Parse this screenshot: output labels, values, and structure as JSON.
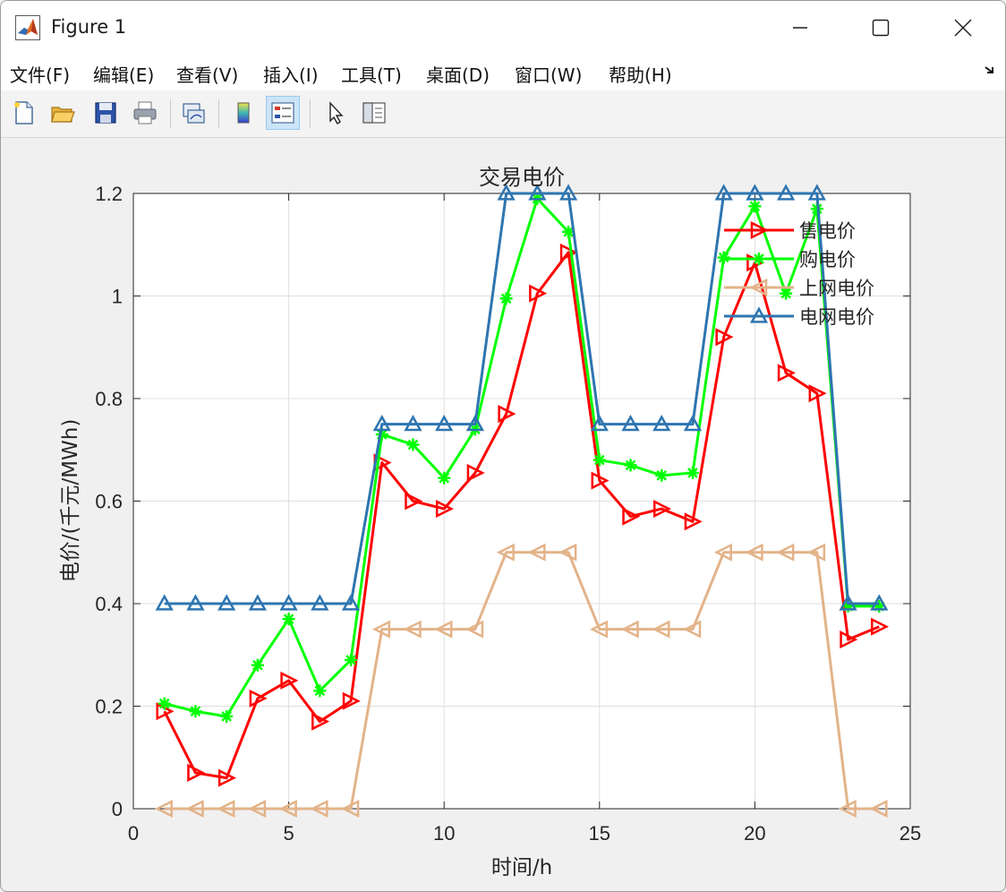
{
  "window": {
    "title": "Figure 1"
  },
  "menu": [
    "文件(F)",
    "编辑(E)",
    "查看(V)",
    "插入(I)",
    "工具(T)",
    "桌面(D)",
    "窗口(W)",
    "帮助(H)"
  ],
  "toolbar": {
    "tools": [
      {
        "name": "new-figure-icon",
        "active": false
      },
      {
        "name": "open-file-icon",
        "active": false
      },
      {
        "name": "save-icon",
        "active": false
      },
      {
        "name": "print-icon",
        "active": false
      },
      {
        "name": "link-plot-icon",
        "active": false
      },
      {
        "name": "colorbar-icon",
        "active": false
      },
      {
        "name": "legend-icon",
        "active": true
      },
      {
        "name": "pointer-icon",
        "active": false
      },
      {
        "name": "property-editor-icon",
        "active": false
      }
    ]
  },
  "colors": {
    "sell": "#ff0000",
    "buy": "#00ff00",
    "feedin": "#e3b389",
    "grid": "#2e75b0"
  },
  "chart_data": {
    "type": "line",
    "title": "交易电价",
    "xlabel": "时间/h",
    "ylabel": "电价/(千元/MWh)",
    "xlim": [
      0,
      25
    ],
    "ylim": [
      0,
      1.2
    ],
    "xticks": [
      0,
      5,
      10,
      15,
      20,
      25
    ],
    "yticks": [
      0,
      0.2,
      0.4,
      0.6,
      0.8,
      1,
      1.2
    ],
    "xtick_labels": [
      "0",
      "5",
      "10",
      "15",
      "20",
      "25"
    ],
    "ytick_labels": [
      "0",
      "0.2",
      "0.4",
      "0.6",
      "0.8",
      "1",
      "1.2"
    ],
    "grid": true,
    "legend_position": "top-right",
    "x": [
      1,
      2,
      3,
      4,
      5,
      6,
      7,
      8,
      9,
      10,
      11,
      12,
      13,
      14,
      15,
      16,
      17,
      18,
      19,
      20,
      21,
      22,
      23,
      24
    ],
    "series": [
      {
        "name": "售电价",
        "color": "#ff0000",
        "marker": "triangle-right",
        "values": [
          0.19,
          0.07,
          0.06,
          0.215,
          0.25,
          0.17,
          0.21,
          0.675,
          0.6,
          0.585,
          0.655,
          0.77,
          1.005,
          1.085,
          0.64,
          0.57,
          0.585,
          0.56,
          0.92,
          1.065,
          0.85,
          0.81,
          0.33,
          0.355
        ]
      },
      {
        "name": "购电价",
        "color": "#00ff00",
        "marker": "asterisk",
        "values": [
          0.205,
          0.19,
          0.18,
          0.28,
          0.37,
          0.23,
          0.29,
          0.73,
          0.71,
          0.645,
          0.74,
          0.995,
          1.19,
          1.125,
          0.68,
          0.67,
          0.65,
          0.655,
          1.075,
          1.175,
          1.005,
          1.17,
          0.395,
          0.395
        ]
      },
      {
        "name": "上网电价",
        "color": "#e3b389",
        "marker": "triangle-left",
        "values": [
          0,
          0,
          0,
          0,
          0,
          0,
          0,
          0.35,
          0.35,
          0.35,
          0.35,
          0.5,
          0.5,
          0.5,
          0.35,
          0.35,
          0.35,
          0.35,
          0.5,
          0.5,
          0.5,
          0.5,
          0,
          0
        ]
      },
      {
        "name": "电网电价",
        "color": "#2e75b0",
        "marker": "triangle-up",
        "values": [
          0.4,
          0.4,
          0.4,
          0.4,
          0.4,
          0.4,
          0.4,
          0.75,
          0.75,
          0.75,
          0.75,
          1.2,
          1.2,
          1.2,
          0.75,
          0.75,
          0.75,
          0.75,
          1.2,
          1.2,
          1.2,
          1.2,
          0.4,
          0.4
        ]
      }
    ]
  }
}
